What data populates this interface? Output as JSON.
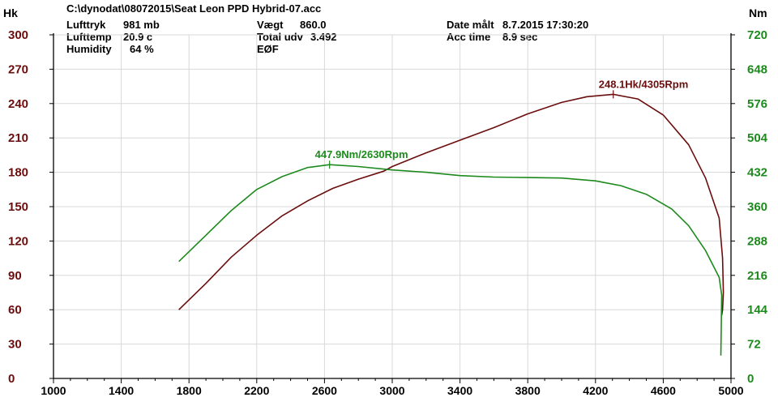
{
  "header": {
    "file": "C:\\dynodat\\08072015\\Seat Leon PPD Hybrid-07.acc",
    "lufttryk_label": "Lufttryk",
    "lufttryk_value": "981 mb",
    "lufttemp_label": "Lufttemp",
    "lufttemp_value": "20.9 c",
    "humidity_label": "Humidity",
    "humidity_value": "64 %",
    "vaegt_label": "Vægt",
    "vaegt_value": "860.0",
    "total_label": "Total udv",
    "total_value": "3.492",
    "eof_label": "EØF",
    "date_label": "Date målt",
    "date_value": "8.7.2015 17:30:20",
    "acc_label": "Acc time",
    "acc_value": "8.9 sec"
  },
  "colors": {
    "power": "#6b0d0d",
    "torque": "#1d8a1d",
    "grid": "#d8d8d8",
    "axis": "#000000"
  },
  "chart_data": {
    "type": "line",
    "xlabel": "",
    "ylabel_left": "Hk",
    "ylabel_right": "Nm",
    "xlim": [
      1000,
      5000
    ],
    "ylim_left": [
      0,
      300
    ],
    "ylim_right": [
      0,
      720
    ],
    "x_ticks": [
      "1000",
      "1400",
      "1800",
      "2200",
      "2600",
      "3000",
      "3400",
      "3800",
      "4200",
      "4600",
      "5000"
    ],
    "y_ticks_left": [
      "0",
      "30",
      "60",
      "90",
      "120",
      "150",
      "180",
      "210",
      "240",
      "270",
      "300"
    ],
    "y_ticks_right": [
      "0",
      "72",
      "144",
      "216",
      "288",
      "360",
      "432",
      "504",
      "576",
      "648",
      "720"
    ],
    "grid": true,
    "series": [
      {
        "axis": "left",
        "color": "#6b0d0d",
        "points": [
          [
            1740,
            60
          ],
          [
            1900,
            83
          ],
          [
            2050,
            106
          ],
          [
            2200,
            125
          ],
          [
            2350,
            142
          ],
          [
            2500,
            155
          ],
          [
            2650,
            166
          ],
          [
            2800,
            174
          ],
          [
            2950,
            181
          ],
          [
            3000,
            185
          ],
          [
            3200,
            197
          ],
          [
            3400,
            208
          ],
          [
            3600,
            219
          ],
          [
            3800,
            231
          ],
          [
            4000,
            241
          ],
          [
            4150,
            246
          ],
          [
            4305,
            248.1
          ],
          [
            4450,
            244
          ],
          [
            4600,
            230
          ],
          [
            4750,
            204
          ],
          [
            4850,
            175
          ],
          [
            4930,
            140
          ],
          [
            4950,
            105
          ],
          [
            4955,
            75
          ],
          [
            4950,
            60
          ],
          [
            4945,
            55
          ]
        ]
      },
      {
        "axis": "right",
        "color": "#1d8a1d",
        "points": [
          [
            1740,
            245
          ],
          [
            1900,
            300
          ],
          [
            2050,
            352
          ],
          [
            2200,
            396
          ],
          [
            2350,
            423
          ],
          [
            2500,
            442
          ],
          [
            2630,
            447.9
          ],
          [
            2800,
            444
          ],
          [
            3000,
            437
          ],
          [
            3200,
            432
          ],
          [
            3400,
            425
          ],
          [
            3600,
            422
          ],
          [
            3800,
            421
          ],
          [
            4000,
            420
          ],
          [
            4200,
            414
          ],
          [
            4350,
            404
          ],
          [
            4500,
            386
          ],
          [
            4650,
            355
          ],
          [
            4750,
            320
          ],
          [
            4850,
            268
          ],
          [
            4930,
            212
          ],
          [
            4945,
            175
          ],
          [
            4940,
            48
          ]
        ]
      }
    ],
    "annotations": [
      {
        "series": 0,
        "x": 4305,
        "y": 248.1,
        "text": "248.1Hk/4305Rpm"
      },
      {
        "series": 1,
        "x": 2630,
        "y": 447.9,
        "text": "447.9Nm/2630Rpm"
      }
    ]
  }
}
